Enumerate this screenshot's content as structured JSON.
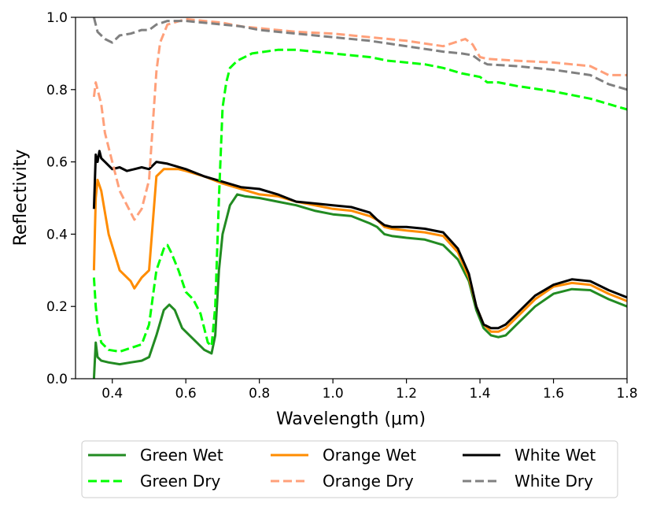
{
  "chart_data": {
    "type": "line",
    "xlabel": "Wavelength (μm)",
    "ylabel": "Reflectivity",
    "xlim": [
      0.3,
      1.8
    ],
    "ylim": [
      0.0,
      1.0
    ],
    "xticks": [
      "0.4",
      "0.6",
      "0.8",
      "1.0",
      "1.2",
      "1.4",
      "1.6",
      "1.8"
    ],
    "xtick_values": [
      0.4,
      0.6,
      0.8,
      1.0,
      1.2,
      1.4,
      1.6,
      1.8
    ],
    "yticks": [
      "0.0",
      "0.2",
      "0.4",
      "0.6",
      "0.8",
      "1.0"
    ],
    "ytick_values": [
      0.0,
      0.2,
      0.4,
      0.6,
      0.8,
      1.0
    ],
    "grid": false,
    "legend_placement": "bottom-outside",
    "series": [
      {
        "name": "Green Wet",
        "color": "#228B22",
        "dash": "solid",
        "x": [
          0.35,
          0.355,
          0.36,
          0.37,
          0.39,
          0.42,
          0.45,
          0.48,
          0.5,
          0.52,
          0.54,
          0.555,
          0.57,
          0.59,
          0.61,
          0.63,
          0.65,
          0.67,
          0.68,
          0.69,
          0.7,
          0.72,
          0.74,
          0.76,
          0.8,
          0.85,
          0.9,
          0.95,
          1.0,
          1.05,
          1.1,
          1.12,
          1.14,
          1.16,
          1.2,
          1.25,
          1.3,
          1.34,
          1.37,
          1.39,
          1.41,
          1.43,
          1.45,
          1.47,
          1.5,
          1.55,
          1.6,
          1.65,
          1.7,
          1.75,
          1.8
        ],
        "y": [
          0.0,
          0.1,
          0.06,
          0.05,
          0.045,
          0.04,
          0.045,
          0.05,
          0.06,
          0.12,
          0.19,
          0.205,
          0.19,
          0.14,
          0.12,
          0.1,
          0.08,
          0.07,
          0.12,
          0.3,
          0.4,
          0.48,
          0.51,
          0.505,
          0.5,
          0.49,
          0.48,
          0.465,
          0.455,
          0.45,
          0.43,
          0.42,
          0.4,
          0.395,
          0.39,
          0.385,
          0.37,
          0.33,
          0.27,
          0.19,
          0.14,
          0.12,
          0.115,
          0.12,
          0.15,
          0.2,
          0.235,
          0.248,
          0.245,
          0.22,
          0.2
        ]
      },
      {
        "name": "Orange Wet",
        "color": "#FF8C00",
        "dash": "solid",
        "x": [
          0.35,
          0.355,
          0.36,
          0.37,
          0.39,
          0.42,
          0.45,
          0.46,
          0.48,
          0.5,
          0.52,
          0.54,
          0.56,
          0.58,
          0.6,
          0.65,
          0.7,
          0.75,
          0.8,
          0.85,
          0.9,
          0.95,
          1.0,
          1.05,
          1.1,
          1.12,
          1.14,
          1.16,
          1.2,
          1.25,
          1.3,
          1.34,
          1.37,
          1.39,
          1.41,
          1.43,
          1.45,
          1.47,
          1.5,
          1.55,
          1.6,
          1.65,
          1.7,
          1.75,
          1.8
        ],
        "y": [
          0.3,
          0.5,
          0.55,
          0.52,
          0.4,
          0.3,
          0.27,
          0.25,
          0.28,
          0.3,
          0.56,
          0.58,
          0.58,
          0.58,
          0.575,
          0.56,
          0.54,
          0.525,
          0.51,
          0.505,
          0.49,
          0.48,
          0.47,
          0.465,
          0.45,
          0.44,
          0.42,
          0.415,
          0.41,
          0.405,
          0.395,
          0.35,
          0.28,
          0.2,
          0.15,
          0.13,
          0.13,
          0.14,
          0.17,
          0.22,
          0.255,
          0.265,
          0.26,
          0.235,
          0.215
        ]
      },
      {
        "name": "White Wet",
        "color": "#000000",
        "dash": "solid",
        "x": [
          0.35,
          0.355,
          0.36,
          0.365,
          0.37,
          0.38,
          0.4,
          0.42,
          0.44,
          0.46,
          0.48,
          0.5,
          0.52,
          0.55,
          0.6,
          0.65,
          0.7,
          0.75,
          0.8,
          0.85,
          0.9,
          0.95,
          1.0,
          1.05,
          1.1,
          1.12,
          1.14,
          1.16,
          1.2,
          1.25,
          1.3,
          1.34,
          1.37,
          1.39,
          1.41,
          1.43,
          1.45,
          1.47,
          1.5,
          1.55,
          1.6,
          1.65,
          1.7,
          1.75,
          1.8
        ],
        "y": [
          0.47,
          0.62,
          0.6,
          0.63,
          0.61,
          0.6,
          0.58,
          0.585,
          0.575,
          0.58,
          0.585,
          0.58,
          0.6,
          0.595,
          0.58,
          0.56,
          0.545,
          0.53,
          0.525,
          0.51,
          0.49,
          0.485,
          0.48,
          0.475,
          0.46,
          0.44,
          0.425,
          0.42,
          0.42,
          0.415,
          0.405,
          0.36,
          0.29,
          0.2,
          0.15,
          0.14,
          0.14,
          0.15,
          0.18,
          0.23,
          0.26,
          0.275,
          0.27,
          0.245,
          0.225
        ]
      },
      {
        "name": "Green Dry",
        "color": "#00FF00",
        "dash": "dashed",
        "x": [
          0.35,
          0.355,
          0.36,
          0.37,
          0.39,
          0.42,
          0.45,
          0.48,
          0.5,
          0.52,
          0.54,
          0.55,
          0.56,
          0.58,
          0.6,
          0.62,
          0.64,
          0.66,
          0.67,
          0.68,
          0.69,
          0.7,
          0.71,
          0.72,
          0.74,
          0.78,
          0.85,
          0.9,
          0.95,
          1.0,
          1.05,
          1.1,
          1.15,
          1.2,
          1.25,
          1.3,
          1.35,
          1.4,
          1.42,
          1.45,
          1.5,
          1.6,
          1.7,
          1.8
        ],
        "y": [
          0.28,
          0.2,
          0.15,
          0.1,
          0.08,
          0.075,
          0.085,
          0.095,
          0.15,
          0.3,
          0.36,
          0.37,
          0.35,
          0.3,
          0.24,
          0.22,
          0.18,
          0.1,
          0.09,
          0.2,
          0.5,
          0.75,
          0.82,
          0.86,
          0.88,
          0.9,
          0.91,
          0.91,
          0.905,
          0.9,
          0.895,
          0.89,
          0.88,
          0.875,
          0.87,
          0.86,
          0.845,
          0.835,
          0.82,
          0.82,
          0.81,
          0.795,
          0.775,
          0.745
        ]
      },
      {
        "name": "Orange Dry",
        "color": "#FFA07A",
        "dash": "dashed",
        "x": [
          0.35,
          0.355,
          0.36,
          0.37,
          0.38,
          0.4,
          0.42,
          0.44,
          0.46,
          0.48,
          0.5,
          0.51,
          0.52,
          0.53,
          0.55,
          0.6,
          0.65,
          0.7,
          0.75,
          0.8,
          0.9,
          1.0,
          1.1,
          1.2,
          1.3,
          1.36,
          1.38,
          1.4,
          1.42,
          1.5,
          1.6,
          1.7,
          1.75,
          1.8
        ],
        "y": [
          0.78,
          0.82,
          0.8,
          0.76,
          0.68,
          0.6,
          0.52,
          0.48,
          0.44,
          0.47,
          0.55,
          0.7,
          0.85,
          0.93,
          0.98,
          0.995,
          0.99,
          0.985,
          0.975,
          0.97,
          0.96,
          0.955,
          0.945,
          0.935,
          0.92,
          0.94,
          0.925,
          0.89,
          0.885,
          0.88,
          0.875,
          0.865,
          0.84,
          0.84
        ]
      },
      {
        "name": "White Dry",
        "color": "#808080",
        "dash": "dashed",
        "x": [
          0.35,
          0.355,
          0.36,
          0.37,
          0.38,
          0.4,
          0.42,
          0.45,
          0.48,
          0.5,
          0.52,
          0.55,
          0.6,
          0.65,
          0.7,
          0.75,
          0.8,
          0.9,
          1.0,
          1.1,
          1.2,
          1.3,
          1.35,
          1.38,
          1.4,
          1.42,
          1.5,
          1.6,
          1.7,
          1.75,
          1.8
        ],
        "y": [
          1.0,
          0.98,
          0.96,
          0.95,
          0.94,
          0.93,
          0.95,
          0.955,
          0.965,
          0.965,
          0.98,
          0.99,
          0.99,
          0.985,
          0.98,
          0.975,
          0.965,
          0.955,
          0.945,
          0.935,
          0.92,
          0.905,
          0.9,
          0.895,
          0.88,
          0.87,
          0.865,
          0.855,
          0.84,
          0.815,
          0.8
        ]
      }
    ]
  }
}
